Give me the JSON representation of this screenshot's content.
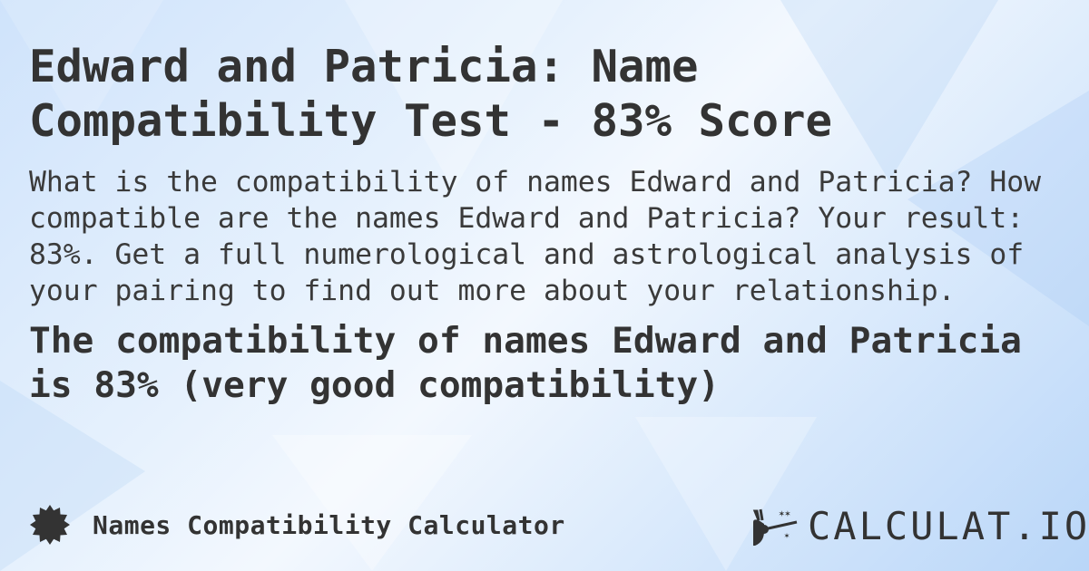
{
  "title": "Edward and Patricia: Name Compatibility Test - 83% Score",
  "description": "What is the compatibility of names Edward and Patricia? How compatible are the names Edward and Patricia? Your result: 83%. Get a full numerological and astrological analysis of your pairing to find out more about your relationship.",
  "result": "The compatibility of names Edward and Patricia is 83% (very good compatibility)",
  "footer": {
    "icon": "badge-icon",
    "label": "Names Compatibility Calculator"
  },
  "logo": {
    "icon": "magic-hand-wand-icon",
    "text": "CALCULAT.IO"
  }
}
